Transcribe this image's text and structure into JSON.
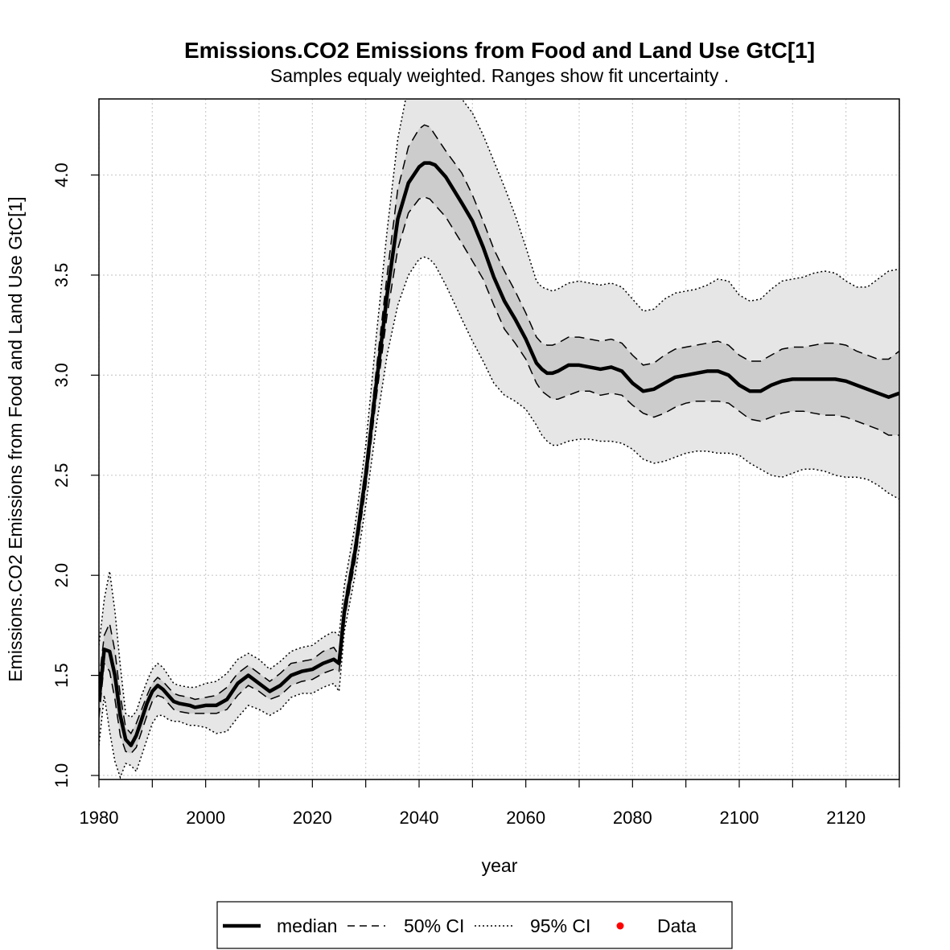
{
  "chart_data": {
    "type": "line",
    "title": "Emissions.CO2 Emissions from Food and Land Use GtC[1]",
    "subtitle": "Samples equaly weighted. Ranges show  fit uncertainty .",
    "xlabel": "year",
    "ylabel": "Emissions.CO2 Emissions from Food and Land Use GtC[1]",
    "xlim": [
      1980,
      2130
    ],
    "ylim": [
      0.98,
      4.38
    ],
    "x_ticks": [
      1980,
      2000,
      2020,
      2040,
      2060,
      2080,
      2100,
      2120
    ],
    "x_tick_labels": [
      "1980",
      "2000",
      "2020",
      "2040",
      "2060",
      "2080",
      "2100",
      "2120"
    ],
    "y_ticks": [
      1.0,
      1.5,
      2.0,
      2.5,
      3.0,
      3.5,
      4.0
    ],
    "y_tick_labels": [
      "1.0",
      "1.5",
      "2.0",
      "2.5",
      "3.0",
      "3.5",
      "4.0"
    ],
    "grid": true,
    "legend_position": "bottom",
    "legend": [
      {
        "label": "median",
        "style": "solid-thick"
      },
      {
        "label": "50% CI",
        "style": "dashed"
      },
      {
        "label": "95% CI",
        "style": "dotted"
      },
      {
        "label": "Data",
        "style": "point",
        "color": "#ff0000"
      }
    ],
    "colors": {
      "ci95_fill": "#e6e6e6",
      "ci50_fill": "#cccccc",
      "line": "#000000",
      "data": "#ff0000",
      "grid": "#cccccc"
    },
    "x": [
      1980,
      1981,
      1982,
      1983,
      1984,
      1985,
      1986,
      1987,
      1988,
      1989,
      1990,
      1991,
      1992,
      1993,
      1994,
      1995,
      1997,
      1998,
      2000,
      2002,
      2004,
      2006,
      2008,
      2010,
      2012,
      2014,
      2016,
      2018,
      2020,
      2022,
      2024,
      2025,
      2026,
      2028,
      2030,
      2032,
      2034,
      2036,
      2038,
      2040,
      2041,
      2042,
      2043,
      2045,
      2048,
      2050,
      2052,
      2054,
      2056,
      2058,
      2060,
      2062,
      2063,
      2064,
      2065,
      2066,
      2068,
      2070,
      2072,
      2074,
      2076,
      2078,
      2080,
      2082,
      2084,
      2086,
      2088,
      2090,
      2092,
      2094,
      2096,
      2098,
      2100,
      2102,
      2104,
      2106,
      2108,
      2110,
      2112,
      2114,
      2116,
      2118,
      2120,
      2122,
      2124,
      2126,
      2128,
      2130
    ],
    "series": [
      {
        "name": "median",
        "values": [
          1.37,
          1.63,
          1.62,
          1.5,
          1.3,
          1.18,
          1.15,
          1.2,
          1.28,
          1.36,
          1.42,
          1.45,
          1.43,
          1.4,
          1.37,
          1.36,
          1.35,
          1.34,
          1.35,
          1.35,
          1.38,
          1.46,
          1.5,
          1.46,
          1.42,
          1.45,
          1.5,
          1.52,
          1.53,
          1.56,
          1.58,
          1.56,
          1.82,
          2.12,
          2.5,
          2.96,
          3.4,
          3.78,
          3.96,
          4.04,
          4.06,
          4.06,
          4.05,
          3.99,
          3.86,
          3.77,
          3.64,
          3.49,
          3.37,
          3.28,
          3.18,
          3.06,
          3.03,
          3.01,
          3.01,
          3.02,
          3.05,
          3.05,
          3.04,
          3.03,
          3.04,
          3.02,
          2.96,
          2.92,
          2.93,
          2.96,
          2.99,
          3.0,
          3.01,
          3.02,
          3.02,
          3.0,
          2.95,
          2.92,
          2.92,
          2.95,
          2.97,
          2.98,
          2.98,
          2.98,
          2.98,
          2.98,
          2.97,
          2.95,
          2.93,
          2.91,
          2.89,
          2.91
        ]
      },
      {
        "name": "",
        "values": [
          1.47,
          1.7,
          1.76,
          1.62,
          1.4,
          1.24,
          1.21,
          1.26,
          1.33,
          1.4,
          1.46,
          1.49,
          1.47,
          1.44,
          1.41,
          1.4,
          1.39,
          1.38,
          1.39,
          1.4,
          1.44,
          1.51,
          1.55,
          1.51,
          1.47,
          1.51,
          1.56,
          1.57,
          1.58,
          1.62,
          1.64,
          1.6,
          1.86,
          2.16,
          2.55,
          3.03,
          3.5,
          3.93,
          4.14,
          4.23,
          4.25,
          4.24,
          4.2,
          4.12,
          4.01,
          3.9,
          3.77,
          3.63,
          3.52,
          3.42,
          3.31,
          3.19,
          3.16,
          3.15,
          3.15,
          3.16,
          3.19,
          3.19,
          3.18,
          3.17,
          3.18,
          3.16,
          3.1,
          3.05,
          3.06,
          3.1,
          3.13,
          3.14,
          3.15,
          3.16,
          3.17,
          3.15,
          3.1,
          3.07,
          3.07,
          3.1,
          3.13,
          3.14,
          3.14,
          3.15,
          3.16,
          3.16,
          3.15,
          3.12,
          3.1,
          3.08,
          3.08,
          3.12
        ]
      },
      {
        "name": "",
        "values": [
          1.29,
          1.56,
          1.52,
          1.38,
          1.2,
          1.12,
          1.11,
          1.14,
          1.22,
          1.3,
          1.37,
          1.4,
          1.39,
          1.36,
          1.33,
          1.32,
          1.31,
          1.31,
          1.31,
          1.31,
          1.33,
          1.4,
          1.45,
          1.42,
          1.38,
          1.4,
          1.45,
          1.47,
          1.48,
          1.51,
          1.53,
          1.52,
          1.78,
          2.07,
          2.44,
          2.89,
          3.3,
          3.63,
          3.81,
          3.88,
          3.89,
          3.88,
          3.85,
          3.79,
          3.66,
          3.57,
          3.48,
          3.35,
          3.23,
          3.16,
          3.08,
          2.96,
          2.92,
          2.9,
          2.88,
          2.88,
          2.9,
          2.92,
          2.92,
          2.9,
          2.91,
          2.9,
          2.85,
          2.81,
          2.79,
          2.81,
          2.84,
          2.86,
          2.87,
          2.87,
          2.87,
          2.86,
          2.82,
          2.78,
          2.77,
          2.79,
          2.81,
          2.82,
          2.82,
          2.81,
          2.8,
          2.8,
          2.79,
          2.77,
          2.75,
          2.73,
          2.7,
          2.7
        ]
      },
      {
        "name": "",
        "values": [
          1.65,
          1.88,
          2.02,
          1.82,
          1.55,
          1.31,
          1.29,
          1.32,
          1.4,
          1.47,
          1.53,
          1.56,
          1.54,
          1.5,
          1.46,
          1.45,
          1.44,
          1.44,
          1.46,
          1.47,
          1.51,
          1.58,
          1.61,
          1.58,
          1.53,
          1.57,
          1.62,
          1.64,
          1.65,
          1.69,
          1.72,
          1.7,
          1.95,
          2.25,
          2.65,
          3.2,
          3.72,
          4.18,
          4.45,
          4.5,
          4.52,
          4.48,
          4.45,
          4.42,
          4.38,
          4.31,
          4.2,
          4.07,
          3.94,
          3.8,
          3.64,
          3.47,
          3.44,
          3.43,
          3.42,
          3.43,
          3.46,
          3.47,
          3.46,
          3.45,
          3.46,
          3.44,
          3.38,
          3.32,
          3.33,
          3.38,
          3.41,
          3.42,
          3.43,
          3.45,
          3.48,
          3.47,
          3.4,
          3.37,
          3.38,
          3.43,
          3.47,
          3.48,
          3.49,
          3.51,
          3.52,
          3.51,
          3.47,
          3.44,
          3.44,
          3.48,
          3.52,
          3.53
        ]
      },
      {
        "name": "",
        "values": [
          1.15,
          1.4,
          1.22,
          1.07,
          0.99,
          1.06,
          1.05,
          1.02,
          1.1,
          1.18,
          1.26,
          1.3,
          1.3,
          1.28,
          1.27,
          1.27,
          1.25,
          1.25,
          1.24,
          1.21,
          1.22,
          1.29,
          1.35,
          1.33,
          1.3,
          1.33,
          1.39,
          1.41,
          1.41,
          1.44,
          1.46,
          1.42,
          1.72,
          2.0,
          2.35,
          2.75,
          3.1,
          3.35,
          3.5,
          3.58,
          3.59,
          3.58,
          3.55,
          3.45,
          3.28,
          3.17,
          3.07,
          2.96,
          2.9,
          2.87,
          2.83,
          2.75,
          2.7,
          2.67,
          2.65,
          2.65,
          2.67,
          2.68,
          2.68,
          2.67,
          2.67,
          2.66,
          2.63,
          2.58,
          2.56,
          2.57,
          2.59,
          2.61,
          2.62,
          2.62,
          2.61,
          2.61,
          2.6,
          2.56,
          2.53,
          2.5,
          2.49,
          2.51,
          2.53,
          2.53,
          2.52,
          2.5,
          2.49,
          2.49,
          2.48,
          2.45,
          2.41,
          2.38
        ]
      }
    ],
    "data_points": []
  }
}
